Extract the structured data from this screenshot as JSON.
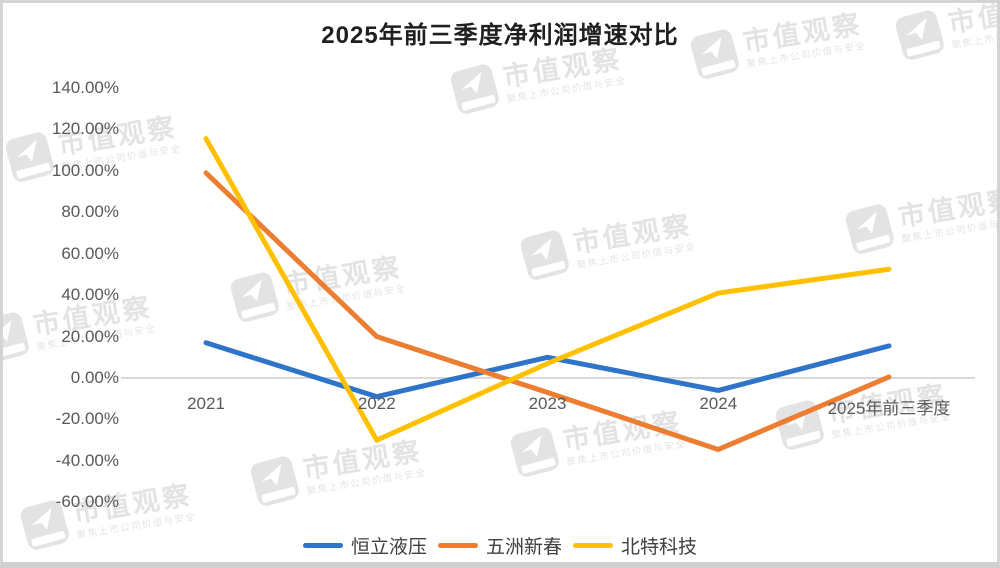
{
  "title": "2025年前三季度净利润增速对比",
  "watermark": {
    "brand": "市值观察",
    "tagline": "聚焦上市公司价值与安全"
  },
  "chart_data": {
    "type": "line",
    "title": "2025年前三季度净利润增速对比",
    "categories": [
      "2021",
      "2022",
      "2023",
      "2024",
      "2025年前三季度"
    ],
    "series": [
      {
        "name": "恒立液压",
        "color": "#2E74C8",
        "values": [
          17,
          -9,
          10,
          -6,
          15.5
        ]
      },
      {
        "name": "五洲新春",
        "color": "#ED7D31",
        "values": [
          99,
          20,
          -7,
          -34.5,
          0.5
        ]
      },
      {
        "name": "北特科技",
        "color": "#FFC000",
        "values": [
          115.5,
          -30,
          7,
          41,
          52.5
        ]
      }
    ],
    "unit": "%",
    "ylim": [
      -60,
      140
    ],
    "ytick_step": 20,
    "yticks": [
      "140.00%",
      "120.00%",
      "100.00%",
      "80.00%",
      "60.00%",
      "40.00%",
      "20.00%",
      "0.00%",
      "-20.00%",
      "-40.00%",
      "-60.00%"
    ],
    "grid": "zero-line-only",
    "legend_position": "bottom",
    "colors": {
      "zero_line": "#d9d9d9",
      "axis_text": "#595959",
      "legend_text": "#404040",
      "title_text": "#1f1f1f"
    }
  }
}
